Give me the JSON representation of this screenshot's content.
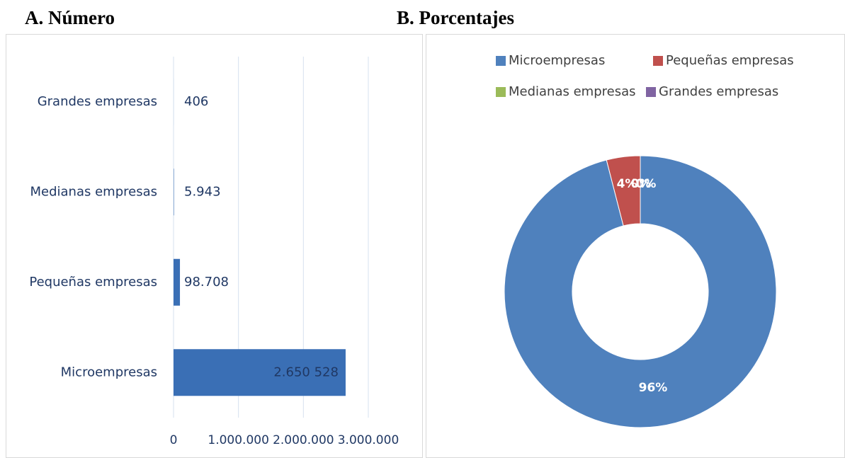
{
  "chart_data": [
    {
      "type": "hbar",
      "title": "A.  Número",
      "categories": [
        "Microempresas",
        "Pequeñas empresas",
        "Medianas empresas",
        "Grandes empresas"
      ],
      "values": [
        2650528,
        98708,
        5943,
        406
      ],
      "value_labels": [
        "2.650 528",
        "98.708",
        "5.943",
        "406"
      ],
      "color": "#3a6fb5",
      "xlim": [
        0,
        3000000
      ],
      "xticks": [
        0,
        {
          "value": 1000000,
          "label": "1.000.000"
        },
        {
          "value": 2000000,
          "label": "2.000.000"
        },
        {
          "value": 3000000,
          "label": "3.000.000"
        }
      ],
      "grid": true
    },
    {
      "type": "donut",
      "title": "B. Porcentajes",
      "categories": [
        "Microempresas",
        "Pequeñas empresas",
        "Medianas empresas",
        "Grandes empresas"
      ],
      "values": [
        96,
        4,
        0,
        0
      ],
      "value_labels": [
        "96%",
        "4%",
        "0%",
        "0%"
      ],
      "colors": [
        "#4f81bd",
        "#c0504d",
        "#9bbb59",
        "#8064a2"
      ],
      "legend": "top"
    }
  ]
}
